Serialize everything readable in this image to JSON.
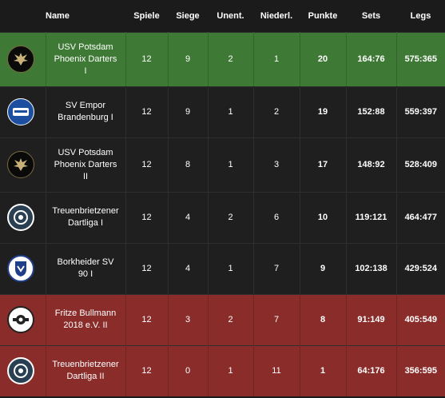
{
  "headers": {
    "name": "Name",
    "games": "Spiele",
    "wins": "Siege",
    "draws": "Unent.",
    "losses": "Niederl.",
    "points": "Punkte",
    "sets": "Sets",
    "legs": "Legs"
  },
  "rows": [
    {
      "name_line1": "USV Potsdam",
      "name_line2": "Phoenix Darters",
      "name_line3": "I",
      "games": "12",
      "wins": "9",
      "draws": "2",
      "losses": "1",
      "points": "20",
      "sets": "164:76",
      "legs": "575:365",
      "status": "promotion",
      "logo": "phoenix-logo-icon"
    },
    {
      "name_line1": "SV Empor",
      "name_line2": "Brandenburg I",
      "name_line3": "",
      "games": "12",
      "wins": "9",
      "draws": "1",
      "losses": "2",
      "points": "19",
      "sets": "152:88",
      "legs": "559:397",
      "status": "neutral",
      "logo": "empor-logo-icon"
    },
    {
      "name_line1": "USV Potsdam",
      "name_line2": "Phoenix Darters",
      "name_line3": "II",
      "games": "12",
      "wins": "8",
      "draws": "1",
      "losses": "3",
      "points": "17",
      "sets": "148:92",
      "legs": "528:409",
      "status": "neutral",
      "logo": "phoenix-logo-icon"
    },
    {
      "name_line1": "Treuenbrietzener",
      "name_line2": "Dartliga I",
      "name_line3": "",
      "games": "12",
      "wins": "4",
      "draws": "2",
      "losses": "6",
      "points": "10",
      "sets": "119:121",
      "legs": "464:477",
      "status": "neutral",
      "logo": "treuenbrietzen-logo-icon"
    },
    {
      "name_line1": "Borkheider SV",
      "name_line2": "90 I",
      "name_line3": "",
      "games": "12",
      "wins": "4",
      "draws": "1",
      "losses": "7",
      "points": "9",
      "sets": "102:138",
      "legs": "429:524",
      "status": "neutral",
      "logo": "borkheide-logo-icon"
    },
    {
      "name_line1": "Fritze Bullmann",
      "name_line2": "2018 e.V. II",
      "name_line3": "",
      "games": "12",
      "wins": "3",
      "draws": "2",
      "losses": "7",
      "points": "8",
      "sets": "91:149",
      "legs": "405:549",
      "status": "relegation",
      "logo": "fritze-logo-icon"
    },
    {
      "name_line1": "Treuenbrietzener",
      "name_line2": "Dartliga II",
      "name_line3": "",
      "games": "12",
      "wins": "0",
      "draws": "1",
      "losses": "11",
      "points": "1",
      "sets": "64:176",
      "legs": "356:595",
      "status": "relegation",
      "logo": "treuenbrietzen-logo-icon"
    }
  ],
  "colors": {
    "promotion": "#3e7a35",
    "relegation": "#8a2c2a",
    "neutral": "#1f1f1f",
    "background": "#1b1b1b"
  }
}
